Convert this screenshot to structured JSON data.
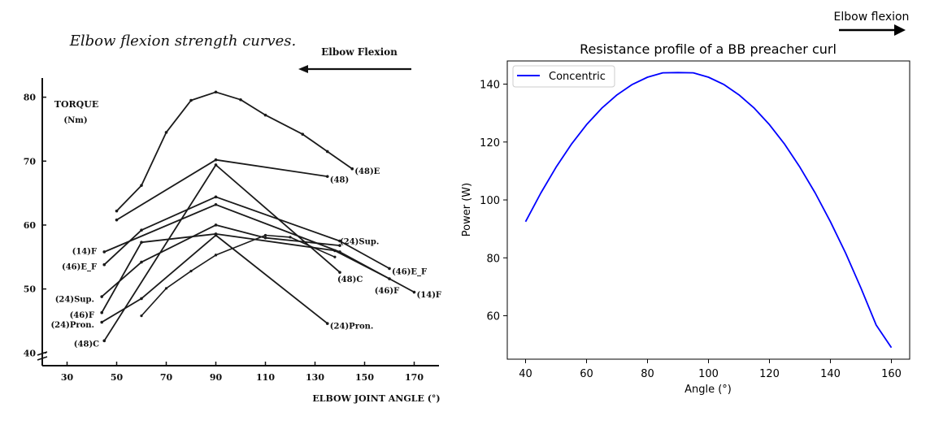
{
  "chart_data": [
    {
      "type": "line",
      "title": "Elbow flexion strength curves.",
      "direction_label": "Elbow Flexion",
      "ylabel_lines": [
        "TORQUE",
        "(Nm)"
      ],
      "xlabel": "ELBOW JOINT ANGLE (°)",
      "xlim": [
        20,
        180
      ],
      "ylim": [
        38,
        83
      ],
      "xticks": [
        30,
        50,
        70,
        90,
        110,
        130,
        150,
        170
      ],
      "yticks": [
        40,
        50,
        60,
        70,
        80
      ],
      "series": [
        {
          "name": "(48)E",
          "x": [
            50,
            60,
            70,
            80,
            90,
            100,
            110,
            125,
            135,
            145
          ],
          "y": [
            62.2,
            66.2,
            74.5,
            79.5,
            80.8,
            79.6,
            77.2,
            74.2,
            71.5,
            68.8
          ]
        },
        {
          "name": "(48)",
          "x": [
            50,
            90,
            135
          ],
          "y": [
            60.8,
            70.2,
            67.6
          ]
        },
        {
          "name": "(48)C",
          "x": [
            45,
            90,
            140
          ],
          "y": [
            41.9,
            69.4,
            52.6
          ]
        },
        {
          "name": "(14)F",
          "x": [
            45,
            90,
            140,
            170
          ],
          "y": [
            55.8,
            63.2,
            55.8,
            49.5
          ]
        },
        {
          "name": "(46)E_F",
          "x": [
            45,
            60,
            90,
            140,
            160
          ],
          "y": [
            53.8,
            59.2,
            64.4,
            57.5,
            53.2
          ]
        },
        {
          "name": "(24)Sup.",
          "x": [
            44,
            60,
            90,
            110,
            140
          ],
          "y": [
            48.8,
            54.2,
            60.0,
            58.0,
            56.8
          ]
        },
        {
          "name": "(46)F",
          "x": [
            44,
            60,
            90,
            138,
            160
          ],
          "y": [
            46.3,
            57.3,
            58.6,
            56.0,
            51.6
          ]
        },
        {
          "name": "(24)Pron.",
          "x": [
            44,
            60,
            90,
            135
          ],
          "y": [
            44.8,
            48.5,
            58.4,
            44.6
          ]
        }
      ],
      "connectors": [
        {
          "x": [
            90,
            110,
            120,
            138
          ],
          "y": [
            55.3,
            58.4,
            58.1,
            55.0
          ]
        },
        {
          "x": [
            60,
            70,
            80,
            90
          ],
          "y": [
            45.8,
            50.1,
            52.8,
            55.3
          ]
        }
      ],
      "labels": [
        {
          "text": "(48)E",
          "x": 146,
          "y": 68.5
        },
        {
          "text": "(48)",
          "x": 136,
          "y": 67.2
        },
        {
          "text": "(48)C",
          "x": 139,
          "y": 51.6
        },
        {
          "text": "(14)F",
          "x": 171,
          "y": 49.2
        },
        {
          "text": "(46)E_F",
          "x": 161,
          "y": 52.8
        },
        {
          "text": "(46)F",
          "x": 154,
          "y": 49.8
        },
        {
          "text": "(24)Sup.",
          "x": 140,
          "y": 57.5
        },
        {
          "text": "(24)Pron.",
          "x": 136,
          "y": 44.3
        },
        {
          "text": "(14)F",
          "x": 42,
          "y": 56.0,
          "anchor": "end"
        },
        {
          "text": "(46)E_F",
          "x": 42,
          "y": 53.6,
          "anchor": "end"
        },
        {
          "text": "(24)Sup.",
          "x": 41,
          "y": 48.5,
          "anchor": "end"
        },
        {
          "text": "(46)F",
          "x": 41,
          "y": 46.0,
          "anchor": "end"
        },
        {
          "text": "(24)Pron.",
          "x": 41,
          "y": 44.5,
          "anchor": "end"
        },
        {
          "text": "(48)C",
          "x": 43,
          "y": 41.5,
          "anchor": "end"
        }
      ]
    },
    {
      "type": "line",
      "title": "Resistance profile of a BB preacher curl",
      "direction_label": "Elbow flexion",
      "xlabel": "Angle (°)",
      "ylabel": "Power (W)",
      "xlim": [
        34,
        166
      ],
      "ylim": [
        45,
        148
      ],
      "xticks": [
        40,
        60,
        80,
        100,
        120,
        140,
        160
      ],
      "yticks": [
        60,
        80,
        100,
        120,
        140
      ],
      "legend": "top-left",
      "grid": false,
      "series": [
        {
          "name": "Concentric",
          "color": "#0000ff",
          "x": [
            40,
            45,
            50,
            55,
            60,
            65,
            70,
            75,
            80,
            85,
            90,
            95,
            100,
            105,
            110,
            115,
            120,
            125,
            130,
            135,
            140,
            145,
            150,
            155,
            160
          ],
          "y": [
            92.5,
            102.4,
            111.3,
            119.2,
            126.0,
            131.7,
            136.3,
            139.9,
            142.4,
            143.9,
            144.0,
            143.9,
            142.4,
            139.9,
            136.3,
            131.7,
            126.0,
            119.2,
            111.3,
            102.4,
            92.5,
            81.6,
            69.6,
            56.8,
            49.0
          ]
        }
      ]
    }
  ]
}
